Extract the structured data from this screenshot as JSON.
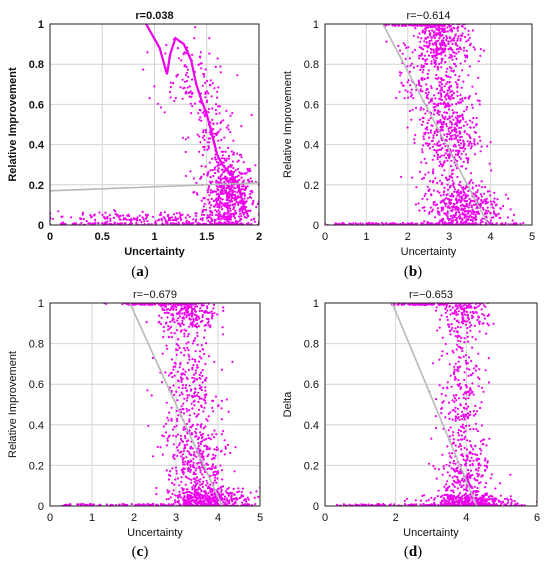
{
  "chart_data": [
    {
      "panel_label": "(a)",
      "type": "scatter",
      "title": "r=0.038",
      "xlabel": "Uncertainty",
      "ylabel": "Relative Improvement",
      "xlim": [
        0,
        2
      ],
      "ylim": [
        0,
        1
      ],
      "xticks": [
        "0",
        "0.5",
        "1",
        "1.5",
        "2"
      ],
      "yticks": [
        "0",
        "0.2",
        "0.4",
        "0.6",
        "0.8",
        "1"
      ],
      "grid": true,
      "bold_labels": true,
      "color": "#ee00ee",
      "trend_color": "#b8b8b8",
      "trend_line": {
        "x": [
          0,
          2
        ],
        "y": [
          0.17,
          0.21
        ]
      },
      "series_points": [
        {
          "x": 0.92,
          "y": 1.0
        },
        {
          "x": 1.05,
          "y": 0.88
        },
        {
          "x": 1.12,
          "y": 0.75
        },
        {
          "x": 1.15,
          "y": 0.85
        },
        {
          "x": 1.2,
          "y": 0.93
        },
        {
          "x": 1.28,
          "y": 0.9
        },
        {
          "x": 1.35,
          "y": 0.82
        },
        {
          "x": 1.4,
          "y": 0.7
        },
        {
          "x": 1.45,
          "y": 0.62
        },
        {
          "x": 1.5,
          "y": 0.55
        },
        {
          "x": 1.55,
          "y": 0.45
        },
        {
          "x": 1.6,
          "y": 0.35
        },
        {
          "x": 1.65,
          "y": 0.3
        },
        {
          "x": 1.7,
          "y": 0.27
        },
        {
          "x": 1.75,
          "y": 0.24
        },
        {
          "x": 1.8,
          "y": 0.2
        },
        {
          "x": 1.85,
          "y": 0.1
        },
        {
          "x": 1.9,
          "y": 0.04
        }
      ],
      "clusters": [
        {
          "cx": 1.72,
          "cy": 0.14,
          "sx": 0.12,
          "sy": 0.09,
          "n": 520
        },
        {
          "cx": 1.55,
          "cy": 0.42,
          "sx": 0.12,
          "sy": 0.16,
          "n": 160
        },
        {
          "cx": 1.3,
          "cy": 0.75,
          "sx": 0.14,
          "sy": 0.1,
          "n": 90
        },
        {
          "cx": 1.0,
          "cy": 0.03,
          "sx": 0.55,
          "sy": 0.02,
          "n": 220
        }
      ]
    },
    {
      "panel_label": "(b)",
      "type": "scatter",
      "title": "r=−0.614",
      "xlabel": "Uncertainty",
      "ylabel": "Relative Improvement",
      "xlim": [
        0,
        5
      ],
      "ylim": [
        0,
        1
      ],
      "xticks": [
        "0",
        "1",
        "2",
        "3",
        "4",
        "5"
      ],
      "yticks": [
        "0",
        "0.2",
        "0.4",
        "0.6",
        "0.8",
        "1"
      ],
      "grid": true,
      "bold_labels": false,
      "color": "#ee00ee",
      "trend_color": "#b8b8b8",
      "trend_line": {
        "x": [
          1.4,
          3.95
        ],
        "y": [
          1.0,
          0.0
        ]
      },
      "clusters": [
        {
          "cx": 2.8,
          "cy": 0.9,
          "sx": 0.35,
          "sy": 0.08,
          "n": 360
        },
        {
          "cx": 3.0,
          "cy": 0.45,
          "sx": 0.35,
          "sy": 0.14,
          "n": 420
        },
        {
          "cx": 3.3,
          "cy": 0.08,
          "sx": 0.45,
          "sy": 0.07,
          "n": 480
        },
        {
          "cx": 2.6,
          "cy": 0.68,
          "sx": 0.4,
          "sy": 0.1,
          "n": 150
        },
        {
          "cx": 1.5,
          "cy": 0.0,
          "sx": 0.8,
          "sy": 0.005,
          "n": 60
        }
      ]
    },
    {
      "panel_label": "(c)",
      "type": "scatter",
      "title": "r=−0.679",
      "xlabel": "Uncertainty",
      "ylabel": "Relative Improvement",
      "xlim": [
        0,
        5
      ],
      "ylim": [
        0,
        1
      ],
      "xticks": [
        "0",
        "1",
        "2",
        "3",
        "4",
        "5"
      ],
      "yticks": [
        "0",
        "0.2",
        "0.4",
        "0.6",
        "0.8",
        "1"
      ],
      "grid": true,
      "bold_labels": false,
      "color": "#ee00ee",
      "trend_color": "#b8b8b8",
      "trend_line": {
        "x": [
          1.9,
          4.1
        ],
        "y": [
          1.0,
          0.0
        ]
      },
      "clusters": [
        {
          "cx": 3.3,
          "cy": 0.95,
          "sx": 0.35,
          "sy": 0.05,
          "n": 220
        },
        {
          "cx": 3.3,
          "cy": 0.6,
          "sx": 0.35,
          "sy": 0.18,
          "n": 300
        },
        {
          "cx": 3.5,
          "cy": 0.2,
          "sx": 0.35,
          "sy": 0.12,
          "n": 320
        },
        {
          "cx": 3.8,
          "cy": 0.03,
          "sx": 0.45,
          "sy": 0.03,
          "n": 420
        },
        {
          "cx": 2.5,
          "cy": 1.0,
          "sx": 0.5,
          "sy": 0.005,
          "n": 60
        }
      ]
    },
    {
      "panel_label": "(d)",
      "type": "scatter",
      "title": "r=−0.653",
      "xlabel": "Uncertainty",
      "ylabel": "Delta",
      "xlim": [
        0,
        6
      ],
      "ylim": [
        0,
        1
      ],
      "xticks": [
        "0",
        "2",
        "4",
        "6"
      ],
      "yticks": [
        "0",
        "0.2",
        "0.4",
        "0.6",
        "0.8",
        "1"
      ],
      "grid": true,
      "bold_labels": false,
      "color": "#ee00ee",
      "trend_color": "#b8b8b8",
      "trend_line": {
        "x": [
          1.9,
          4.3
        ],
        "y": [
          1.0,
          0.0
        ]
      },
      "clusters": [
        {
          "cx": 3.9,
          "cy": 0.95,
          "sx": 0.35,
          "sy": 0.05,
          "n": 180
        },
        {
          "cx": 3.9,
          "cy": 0.55,
          "sx": 0.35,
          "sy": 0.2,
          "n": 260
        },
        {
          "cx": 4.0,
          "cy": 0.12,
          "sx": 0.35,
          "sy": 0.1,
          "n": 260
        },
        {
          "cx": 4.1,
          "cy": 0.02,
          "sx": 0.6,
          "sy": 0.02,
          "n": 320
        }
      ]
    }
  ]
}
